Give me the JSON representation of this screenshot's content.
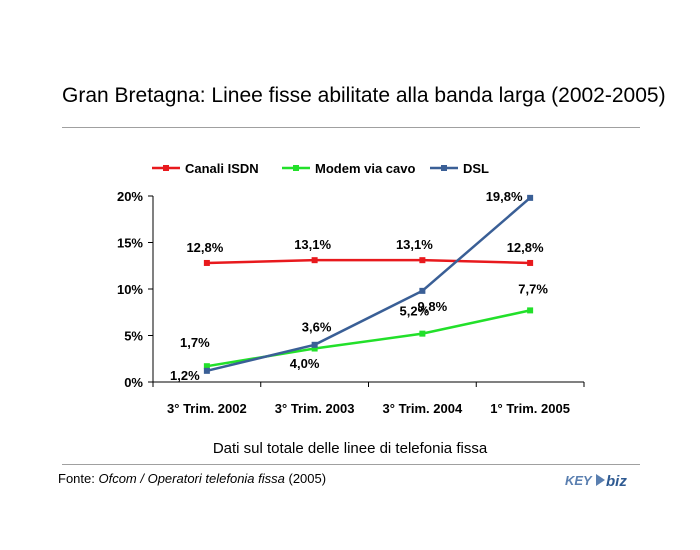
{
  "title": "Gran Bretagna: Linee fisse abilitate alla banda larga (2002-2005)",
  "subtitle": "Dati sul totale delle linee di telefonia fissa",
  "source": {
    "prefix": "Fonte: ",
    "name": "Ofcom / Operatori telefonia fissa",
    "year": " (2005)"
  },
  "logo": {
    "text_key": "KEY",
    "text_biz": "biz"
  },
  "chart_data": {
    "type": "line",
    "categories": [
      "3° Trim. 2002",
      "3° Trim. 2003",
      "3° Trim. 2004",
      "1° Trim. 2005"
    ],
    "x_positions": [
      0,
      1,
      2,
      3
    ],
    "yticks": [
      "0%",
      "5%",
      "10%",
      "15%",
      "20%"
    ],
    "ylim": [
      0,
      20
    ],
    "xlim": [
      -0.5,
      3.5
    ],
    "legend_position": "top",
    "grid": false,
    "series": [
      {
        "name": "Canali ISDN",
        "color": "#e8191d",
        "marker": "square",
        "values": [
          12.8,
          13.1,
          13.1,
          12.8
        ],
        "labels": [
          "12,8%",
          "13,1%",
          "13,1%",
          "12,8%"
        ]
      },
      {
        "name": "Modem via cavo",
        "color": "#22e02a",
        "marker": "square",
        "values": [
          1.7,
          3.6,
          5.2,
          7.7
        ],
        "labels": [
          "1,7%",
          "3,6%",
          "5,2%",
          "7,7%"
        ]
      },
      {
        "name": "DSL",
        "color": "#3a5f96",
        "marker": "square",
        "values": [
          1.2,
          4.0,
          9.8,
          19.8
        ],
        "labels": [
          "1,2%",
          "4,0%",
          "9,8%",
          "19,8%"
        ]
      }
    ]
  }
}
